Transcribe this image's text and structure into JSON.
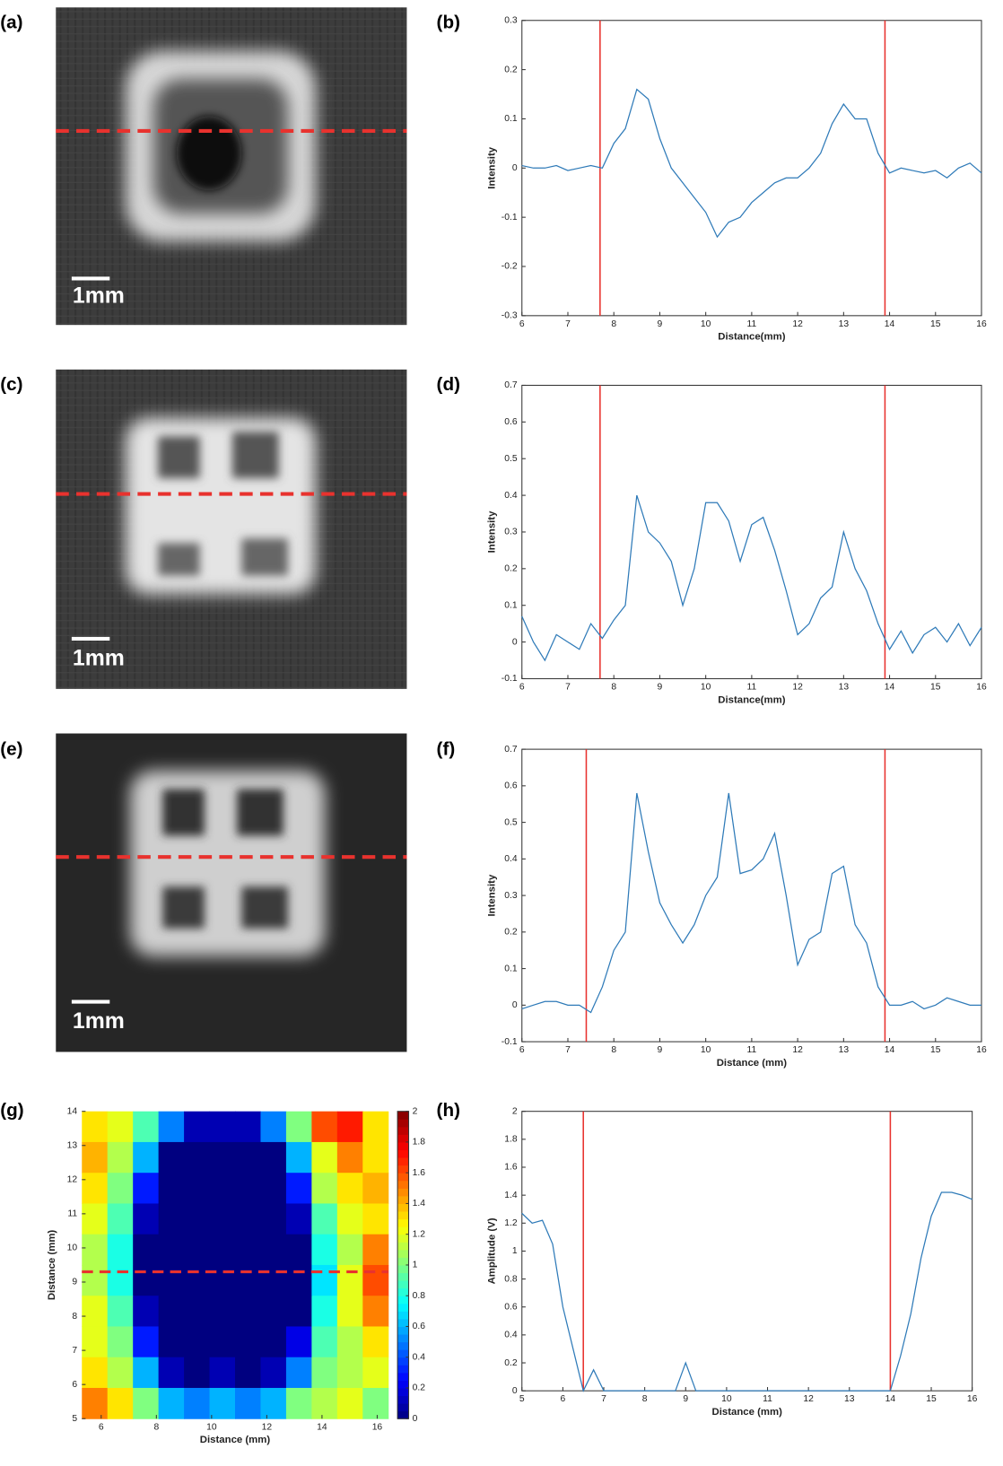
{
  "images": [
    {
      "label": "(a)",
      "scale_bar": "1mm"
    },
    {
      "label": "(c)",
      "scale_bar": "1mm"
    },
    {
      "label": "(e)",
      "scale_bar": "1mm"
    }
  ],
  "chart_data": [
    {
      "type": "line",
      "panel_label": "(b)",
      "xlabel": "Distance(mm)",
      "ylabel": "Intensity",
      "xlim": [
        6,
        16
      ],
      "ylim": [
        -0.3,
        0.3
      ],
      "xticks": [
        6,
        7,
        8,
        9,
        10,
        11,
        12,
        13,
        14,
        15,
        16
      ],
      "yticks": [
        -0.3,
        -0.2,
        -0.1,
        0,
        0.1,
        0.2,
        0.3
      ],
      "color": "#2e7ab8",
      "marker_color": "#e8322e",
      "markers": [
        7.7,
        13.9
      ],
      "x": [
        6,
        6.25,
        6.5,
        6.75,
        7,
        7.25,
        7.5,
        7.75,
        8,
        8.25,
        8.5,
        8.75,
        9,
        9.25,
        9.5,
        9.75,
        10,
        10.25,
        10.5,
        10.75,
        11,
        11.25,
        11.5,
        11.75,
        12,
        12.25,
        12.5,
        12.75,
        13,
        13.25,
        13.5,
        13.75,
        14,
        14.25,
        14.5,
        14.75,
        15,
        15.25,
        15.5,
        15.75,
        16
      ],
      "values": [
        0.005,
        0,
        0,
        0.005,
        -0.005,
        0,
        0.005,
        0,
        0.05,
        0.08,
        0.16,
        0.14,
        0.06,
        0,
        -0.03,
        -0.06,
        -0.09,
        -0.14,
        -0.11,
        -0.1,
        -0.07,
        -0.05,
        -0.03,
        -0.02,
        -0.02,
        0,
        0.03,
        0.09,
        0.13,
        0.1,
        0.1,
        0.03,
        -0.01,
        0,
        -0.005,
        -0.01,
        -0.005,
        -0.02,
        0,
        0.01,
        -0.01
      ]
    },
    {
      "type": "line",
      "panel_label": "(d)",
      "xlabel": "Distance(mm)",
      "ylabel": "Intensity",
      "xlim": [
        6,
        16
      ],
      "ylim": [
        -0.1,
        0.7
      ],
      "xticks": [
        6,
        7,
        8,
        9,
        10,
        11,
        12,
        13,
        14,
        15,
        16
      ],
      "yticks": [
        -0.1,
        0,
        0.1,
        0.2,
        0.3,
        0.4,
        0.5,
        0.6,
        0.7
      ],
      "color": "#2e7ab8",
      "marker_color": "#e8322e",
      "markers": [
        7.7,
        13.9
      ],
      "x": [
        6,
        6.25,
        6.5,
        6.75,
        7,
        7.25,
        7.5,
        7.75,
        8,
        8.25,
        8.5,
        8.75,
        9,
        9.25,
        9.5,
        9.75,
        10,
        10.25,
        10.5,
        10.75,
        11,
        11.25,
        11.5,
        11.75,
        12,
        12.25,
        12.5,
        12.75,
        13,
        13.25,
        13.5,
        13.75,
        14,
        14.25,
        14.5,
        14.75,
        15,
        15.25,
        15.5,
        15.75,
        16
      ],
      "values": [
        0.07,
        0,
        -0.05,
        0.02,
        0,
        -0.02,
        0.05,
        0.01,
        0.06,
        0.1,
        0.4,
        0.3,
        0.27,
        0.22,
        0.1,
        0.2,
        0.38,
        0.38,
        0.33,
        0.22,
        0.32,
        0.34,
        0.25,
        0.14,
        0.02,
        0.05,
        0.12,
        0.15,
        0.3,
        0.2,
        0.14,
        0.05,
        -0.02,
        0.03,
        -0.03,
        0.02,
        0.04,
        0,
        0.05,
        -0.01,
        0.04
      ]
    },
    {
      "type": "line",
      "panel_label": "(f)",
      "xlabel": "Distance (mm)",
      "ylabel": "Intensity",
      "xlim": [
        6,
        16
      ],
      "ylim": [
        -0.1,
        0.7
      ],
      "xticks": [
        6,
        7,
        8,
        9,
        10,
        11,
        12,
        13,
        14,
        15,
        16
      ],
      "yticks": [
        -0.1,
        0,
        0.1,
        0.2,
        0.3,
        0.4,
        0.5,
        0.6,
        0.7
      ],
      "color": "#2e7ab8",
      "marker_color": "#e8322e",
      "markers": [
        7.4,
        13.9
      ],
      "x": [
        6,
        6.25,
        6.5,
        6.75,
        7,
        7.25,
        7.5,
        7.75,
        8,
        8.25,
        8.5,
        8.75,
        9,
        9.25,
        9.5,
        9.75,
        10,
        10.25,
        10.5,
        10.75,
        11,
        11.25,
        11.5,
        11.75,
        12,
        12.25,
        12.5,
        12.75,
        13,
        13.25,
        13.5,
        13.75,
        14,
        14.25,
        14.5,
        14.75,
        15,
        15.25,
        15.5,
        15.75,
        16
      ],
      "values": [
        -0.01,
        0,
        0.01,
        0.01,
        0,
        0,
        -0.02,
        0.05,
        0.15,
        0.2,
        0.58,
        0.42,
        0.28,
        0.22,
        0.17,
        0.22,
        0.3,
        0.35,
        0.58,
        0.36,
        0.37,
        0.4,
        0.47,
        0.3,
        0.11,
        0.18,
        0.2,
        0.36,
        0.38,
        0.22,
        0.17,
        0.05,
        0,
        0,
        0.01,
        -0.01,
        0,
        0.02,
        0.01,
        0,
        0
      ]
    },
    {
      "type": "heatmap",
      "panel_label": "(g)",
      "xlabel": "Distance (mm)",
      "ylabel": "Distance (mm)",
      "xlim": [
        5.3,
        16.4
      ],
      "ylim": [
        5,
        14
      ],
      "xticks": [
        6,
        8,
        10,
        12,
        14,
        16
      ],
      "yticks": [
        5,
        6,
        7,
        8,
        9,
        10,
        11,
        12,
        13,
        14
      ],
      "clim": [
        0,
        2
      ],
      "cticks": [
        0,
        0.2,
        0.4,
        0.6,
        0.8,
        1,
        1.2,
        1.4,
        1.6,
        1.8,
        2
      ],
      "line_y": 9.3,
      "line_color": "#e8322e",
      "z": [
        [
          1.3,
          1.2,
          0.9,
          0.5,
          0.1,
          0.1,
          0.1,
          0.5,
          1.0,
          1.6,
          1.7,
          1.3
        ],
        [
          1.4,
          1.1,
          0.6,
          0,
          0,
          0,
          0,
          0,
          0.6,
          1.2,
          1.5,
          1.3
        ],
        [
          1.3,
          1.0,
          0.3,
          0,
          0,
          0,
          0,
          0,
          0.3,
          1.1,
          1.3,
          1.4
        ],
        [
          1.2,
          0.9,
          0.1,
          0,
          0,
          0,
          0,
          0,
          0.1,
          0.9,
          1.2,
          1.3
        ],
        [
          1.1,
          0.8,
          0,
          0,
          0,
          0,
          0,
          0,
          0,
          0.8,
          1.1,
          1.5
        ],
        [
          1.1,
          0.8,
          0,
          0,
          0,
          0,
          0,
          0,
          0,
          0.7,
          1.2,
          1.6
        ],
        [
          1.2,
          0.9,
          0.1,
          0,
          0,
          0,
          0,
          0,
          0,
          0.8,
          1.2,
          1.5
        ],
        [
          1.2,
          1.0,
          0.3,
          0,
          0,
          0,
          0,
          0,
          0.2,
          0.9,
          1.1,
          1.3
        ],
        [
          1.3,
          1.1,
          0.6,
          0.1,
          0,
          0.1,
          0,
          0.1,
          0.5,
          1.0,
          1.1,
          1.2
        ],
        [
          1.5,
          1.3,
          1.0,
          0.6,
          0.5,
          0.6,
          0.5,
          0.6,
          1.0,
          1.1,
          1.2,
          1.0
        ]
      ]
    },
    {
      "type": "line",
      "panel_label": "(h)",
      "xlabel": "Distance (mm)",
      "ylabel": "Amplitude (V)",
      "xlim": [
        5,
        16
      ],
      "ylim": [
        0,
        2
      ],
      "xticks": [
        5,
        6,
        7,
        8,
        9,
        10,
        11,
        12,
        13,
        14,
        15,
        16
      ],
      "yticks": [
        0,
        0.2,
        0.4,
        0.6,
        0.8,
        1,
        1.2,
        1.4,
        1.6,
        1.8,
        2
      ],
      "color": "#2e7ab8",
      "marker_color": "#e8322e",
      "markers": [
        6.5,
        14
      ],
      "x": [
        5,
        5.25,
        5.5,
        5.75,
        6,
        6.25,
        6.5,
        6.75,
        7,
        7.25,
        7.5,
        7.75,
        8,
        8.25,
        8.5,
        8.75,
        9,
        9.25,
        9.5,
        9.75,
        10,
        10.25,
        10.5,
        10.75,
        11,
        11.25,
        11.5,
        11.75,
        12,
        12.25,
        12.5,
        12.75,
        13,
        13.25,
        13.5,
        13.75,
        14,
        14.25,
        14.5,
        14.75,
        15,
        15.25,
        15.5,
        15.75,
        16
      ],
      "values": [
        1.27,
        1.2,
        1.22,
        1.05,
        0.6,
        0.3,
        0,
        0.15,
        0,
        0,
        0,
        0,
        0,
        0,
        0,
        0,
        0.2,
        0,
        0,
        0,
        0,
        0,
        0,
        0,
        0,
        0,
        0,
        0,
        0,
        0,
        0,
        0,
        0,
        0,
        0,
        0,
        0,
        0.25,
        0.55,
        0.95,
        1.25,
        1.42,
        1.42,
        1.4,
        1.37
      ]
    }
  ]
}
